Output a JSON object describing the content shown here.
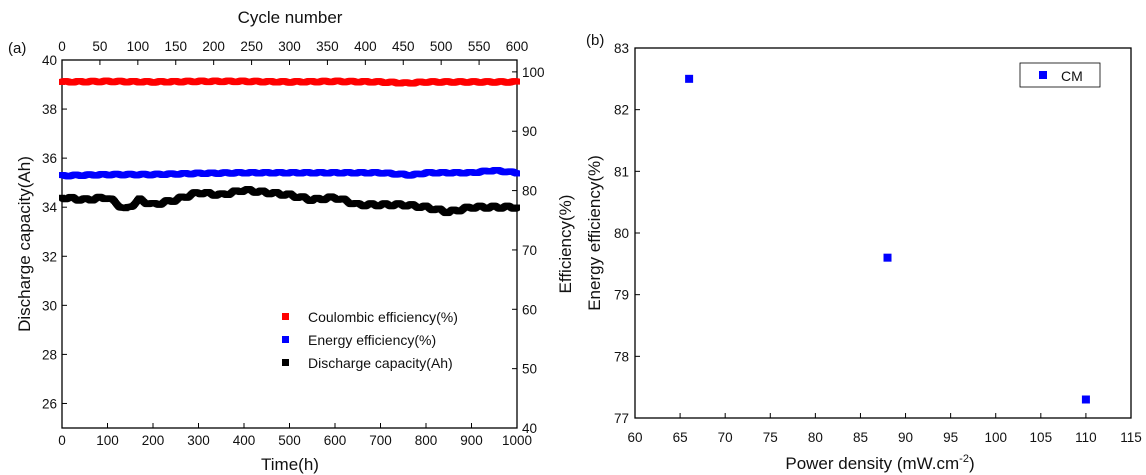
{
  "chart_data": [
    {
      "panel": "(a)",
      "type": "scatter",
      "top_axis": {
        "label": "Cycle number",
        "ticks": [
          0,
          50,
          100,
          150,
          200,
          250,
          300,
          350,
          400,
          450,
          500,
          550,
          600
        ],
        "range": [
          0,
          600
        ]
      },
      "x_axis": {
        "label": "Time(h)",
        "ticks": [
          0,
          100,
          200,
          300,
          400,
          500,
          600,
          700,
          800,
          900,
          1000
        ],
        "range": [
          0,
          1000
        ]
      },
      "y_left": {
        "label": "Discharge capacity(Ah)",
        "ticks": [
          26,
          28,
          30,
          32,
          34,
          36,
          38,
          40
        ],
        "range": [
          25,
          40
        ]
      },
      "y_right": {
        "label": "Efficiency(%)",
        "ticks": [
          40,
          50,
          60,
          70,
          80,
          90,
          100
        ],
        "range": [
          40,
          102
        ]
      },
      "legend_position": "lower-right",
      "series": [
        {
          "name": "Coulombic efficiency(%)",
          "axis": "right",
          "color": "#ff0000",
          "x": [
            0,
            100,
            200,
            300,
            400,
            500,
            600,
            700,
            760,
            800,
            900,
            1000
          ],
          "y": [
            98.3,
            98.4,
            98.3,
            98.4,
            98.4,
            98.3,
            98.4,
            98.3,
            98.1,
            98.3,
            98.3,
            98.3
          ]
        },
        {
          "name": "Energy efficiency(%)",
          "axis": "right",
          "color": "#0000ff",
          "x": [
            0,
            100,
            200,
            300,
            400,
            500,
            600,
            700,
            770,
            800,
            900,
            950,
            1000
          ],
          "y": [
            82.5,
            82.7,
            82.7,
            82.9,
            83.0,
            83.0,
            83.0,
            83.0,
            82.6,
            83.0,
            83.0,
            83.4,
            83.0
          ]
        },
        {
          "name": "Discharge capacity(Ah)",
          "axis": "left",
          "color": "#000000",
          "x": [
            0,
            50,
            100,
            140,
            170,
            200,
            250,
            300,
            350,
            400,
            450,
            500,
            550,
            600,
            650,
            700,
            750,
            800,
            850,
            900,
            950,
            1000
          ],
          "y": [
            34.4,
            34.3,
            34.4,
            33.9,
            34.3,
            34.1,
            34.3,
            34.6,
            34.5,
            34.7,
            34.6,
            34.5,
            34.3,
            34.4,
            34.1,
            34.1,
            34.1,
            34.0,
            33.8,
            34.0,
            34.0,
            34.0
          ]
        }
      ]
    },
    {
      "panel": "(b)",
      "type": "scatter",
      "x_axis": {
        "label": "Power density (mW.cm",
        "label_sup": "-2",
        "label_end": ")",
        "ticks": [
          60,
          65,
          70,
          75,
          80,
          85,
          90,
          95,
          100,
          105,
          110,
          115
        ],
        "range": [
          60,
          115
        ]
      },
      "y_axis": {
        "label": "Energy efficiency(%)",
        "ticks": [
          77,
          78,
          79,
          80,
          81,
          82,
          83
        ],
        "range": [
          77,
          83
        ]
      },
      "legend_position": "top-right",
      "series": [
        {
          "name": "CM",
          "color": "#0000ff",
          "x": [
            66,
            88,
            110
          ],
          "y": [
            82.5,
            79.6,
            77.3
          ]
        }
      ]
    }
  ]
}
